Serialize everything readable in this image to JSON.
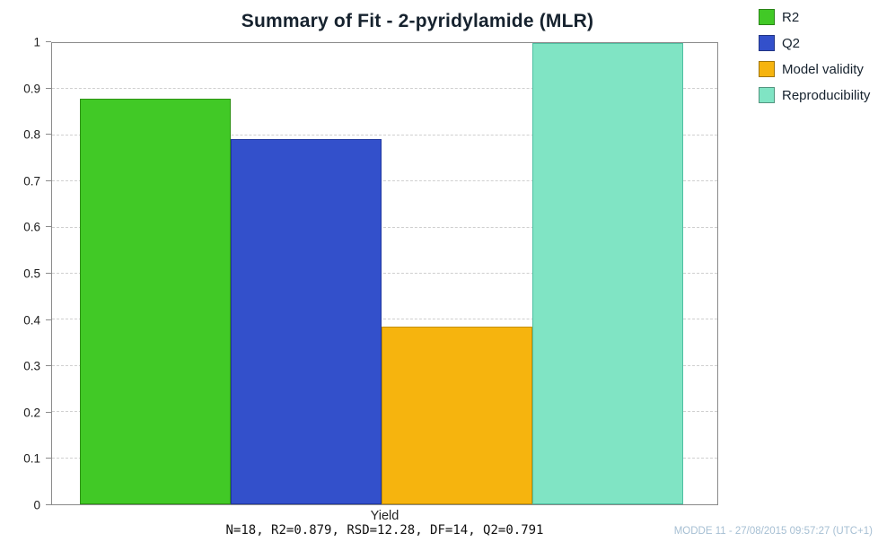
{
  "chart_data": {
    "type": "bar",
    "title": "Summary of Fit - 2-pyridylamide (MLR)",
    "categories": [
      "R2",
      "Q2",
      "Model validity",
      "Reproducibility"
    ],
    "values": [
      0.879,
      0.791,
      0.385,
      1.0
    ],
    "colors": [
      "#41c926",
      "#3350cb",
      "#f6b40e",
      "#80e4c4"
    ],
    "border_colors": [
      "#2e9214",
      "#2038a0",
      "#c48f00",
      "#4fc0a2"
    ],
    "xlabel": "Yield",
    "stats_line": "N=18, R2=0.879, RSD=12.28, DF=14, Q2=0.791",
    "ylim": [
      0,
      1
    ],
    "ytick_labels": [
      "0",
      "0.1",
      "0.2",
      "0.3",
      "0.4",
      "0.5",
      "0.6",
      "0.7",
      "0.8",
      "0.9",
      "1"
    ],
    "grid": "dashed horizontal",
    "legend_position": "top-right",
    "legend": [
      "R2",
      "Q2",
      "Model validity",
      "Reproducibility"
    ],
    "footer": "MODDE 11 - 27/08/2015 09:57:27 (UTC+1)"
  }
}
